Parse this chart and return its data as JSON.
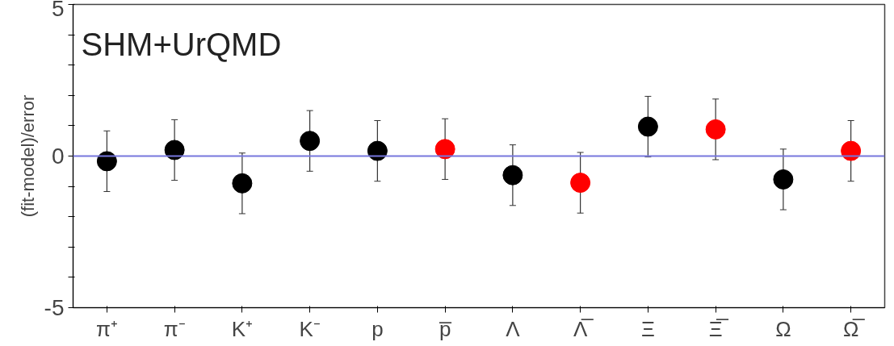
{
  "chart_data": {
    "type": "scatter",
    "ylabel": "(fit-model)/error",
    "annotations": [
      "SHM+UrQMD"
    ],
    "categories": [
      "π⁺",
      "π⁻",
      "K⁺",
      "K⁻",
      "p",
      "p̅",
      "Λ",
      "Λ̅",
      "Ξ",
      "Ξ̅",
      "Ω",
      "Ω̅"
    ],
    "values": [
      -0.17,
      0.2,
      -0.9,
      0.5,
      0.17,
      0.23,
      -0.63,
      -0.88,
      0.97,
      0.88,
      -0.77,
      0.17
    ],
    "colors": [
      "#000000",
      "#000000",
      "#000000",
      "#000000",
      "#000000",
      "#ff0000",
      "#000000",
      "#ff0000",
      "#000000",
      "#ff0000",
      "#000000",
      "#ff0000"
    ],
    "errors": [
      1,
      1,
      1,
      1,
      1,
      1,
      1,
      1,
      1,
      1,
      1,
      1
    ],
    "ylim": [
      -5,
      5
    ],
    "yticks": [
      -5,
      {
        "value": -4,
        "label": null
      },
      {
        "value": -3,
        "label": null
      },
      {
        "value": -2,
        "label": null
      },
      {
        "value": -1,
        "label": null
      },
      0,
      {
        "value": 1,
        "label": null
      },
      {
        "value": 2,
        "label": null
      },
      {
        "value": 3,
        "label": null
      },
      {
        "value": 4,
        "label": null
      },
      5
    ],
    "ref_lines": [
      {
        "axis": "y",
        "value": 0,
        "label": null,
        "color": "#7777dd"
      }
    ],
    "marker": "circle",
    "grid": false
  }
}
